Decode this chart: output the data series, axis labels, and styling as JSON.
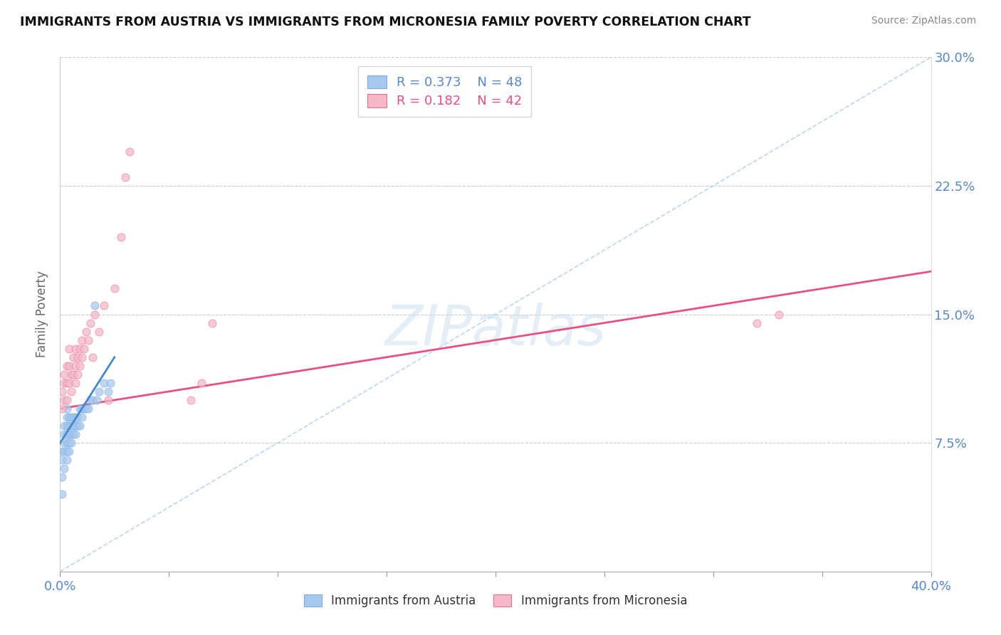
{
  "title": "IMMIGRANTS FROM AUSTRIA VS IMMIGRANTS FROM MICRONESIA FAMILY POVERTY CORRELATION CHART",
  "source": "Source: ZipAtlas.com",
  "ylabel": "Family Poverty",
  "watermark": "ZIPatlas",
  "xlim": [
    0.0,
    0.4
  ],
  "ylim": [
    0.0,
    0.3
  ],
  "xticks": [
    0.0,
    0.05,
    0.1,
    0.15,
    0.2,
    0.25,
    0.3,
    0.35,
    0.4
  ],
  "yticks": [
    0.0,
    0.075,
    0.15,
    0.225,
    0.3
  ],
  "ytick_labels": [
    "",
    "7.5%",
    "15.0%",
    "22.5%",
    "30.0%"
  ],
  "xtick_labels": [
    "0.0%",
    "",
    "",
    "",
    "",
    "",
    "",
    "",
    "40.0%"
  ],
  "austria_R": 0.373,
  "austria_N": 48,
  "micronesia_R": 0.182,
  "micronesia_N": 42,
  "austria_color": "#a8c8f0",
  "micronesia_color": "#f4b8c8",
  "austria_edge_color": "#7aaed8",
  "micronesia_edge_color": "#e87090",
  "austria_line_color": "#4488cc",
  "micronesia_line_color": "#e85080",
  "ref_line_color": "#aaccee",
  "austria_x": [
    0.001,
    0.001,
    0.001,
    0.001,
    0.002,
    0.002,
    0.002,
    0.002,
    0.002,
    0.003,
    0.003,
    0.003,
    0.003,
    0.003,
    0.003,
    0.003,
    0.004,
    0.004,
    0.004,
    0.004,
    0.004,
    0.005,
    0.005,
    0.005,
    0.005,
    0.006,
    0.006,
    0.006,
    0.007,
    0.007,
    0.007,
    0.008,
    0.008,
    0.009,
    0.009,
    0.01,
    0.01,
    0.011,
    0.012,
    0.013,
    0.014,
    0.015,
    0.016,
    0.017,
    0.018,
    0.02,
    0.022,
    0.023
  ],
  "austria_y": [
    0.045,
    0.055,
    0.065,
    0.07,
    0.06,
    0.07,
    0.075,
    0.08,
    0.085,
    0.065,
    0.07,
    0.075,
    0.08,
    0.085,
    0.09,
    0.095,
    0.07,
    0.075,
    0.08,
    0.085,
    0.09,
    0.075,
    0.08,
    0.085,
    0.09,
    0.08,
    0.085,
    0.09,
    0.08,
    0.085,
    0.09,
    0.085,
    0.09,
    0.085,
    0.095,
    0.09,
    0.095,
    0.095,
    0.095,
    0.095,
    0.1,
    0.1,
    0.155,
    0.1,
    0.105,
    0.11,
    0.105,
    0.11
  ],
  "micronesia_x": [
    0.001,
    0.001,
    0.002,
    0.002,
    0.002,
    0.003,
    0.003,
    0.003,
    0.004,
    0.004,
    0.004,
    0.005,
    0.005,
    0.006,
    0.006,
    0.007,
    0.007,
    0.007,
    0.008,
    0.008,
    0.009,
    0.009,
    0.01,
    0.01,
    0.011,
    0.012,
    0.013,
    0.014,
    0.015,
    0.016,
    0.018,
    0.02,
    0.022,
    0.025,
    0.028,
    0.03,
    0.032,
    0.06,
    0.065,
    0.07,
    0.32,
    0.33
  ],
  "micronesia_y": [
    0.095,
    0.105,
    0.1,
    0.11,
    0.115,
    0.1,
    0.11,
    0.12,
    0.11,
    0.12,
    0.13,
    0.105,
    0.115,
    0.115,
    0.125,
    0.11,
    0.12,
    0.13,
    0.115,
    0.125,
    0.12,
    0.13,
    0.125,
    0.135,
    0.13,
    0.14,
    0.135,
    0.145,
    0.125,
    0.15,
    0.14,
    0.155,
    0.1,
    0.165,
    0.195,
    0.23,
    0.245,
    0.1,
    0.11,
    0.145,
    0.145,
    0.15
  ],
  "austria_trend_x0": 0.0,
  "austria_trend_x1": 0.025,
  "austria_trend_y0": 0.075,
  "austria_trend_y1": 0.125,
  "micronesia_trend_x0": 0.0,
  "micronesia_trend_x1": 0.4,
  "micronesia_trend_y0": 0.095,
  "micronesia_trend_y1": 0.175,
  "ref_line_x0": 0.0,
  "ref_line_x1": 0.4,
  "ref_line_y0": 0.0,
  "ref_line_y1": 0.3
}
